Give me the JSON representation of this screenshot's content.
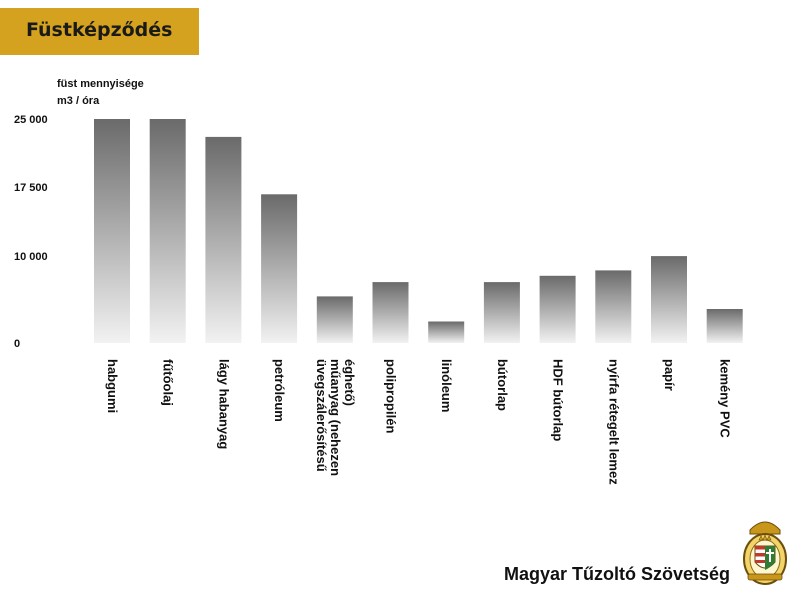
{
  "header": {
    "title": "Füstképződés"
  },
  "footer": {
    "organization": "Magyar Tűzoltó Szövetség"
  },
  "colors": {
    "banner": "#d4a21e",
    "bar_top": "#6a6a6a",
    "bar_bottom": "#f2f2f2"
  },
  "chart_data": {
    "type": "bar",
    "title": "",
    "ylabel": [
      "füst mennyisége",
      "m3 / óra"
    ],
    "xlabel": "",
    "y_ticks": [
      {
        "label": "25 000",
        "value": 25000
      },
      {
        "label": "17 500",
        "value": 17500
      },
      {
        "label": "10 000",
        "value": 10000
      },
      {
        "label": "0",
        "value": 0
      }
    ],
    "ylim": [
      0,
      25000
    ],
    "grid": false,
    "categories": [
      [
        "habgumi"
      ],
      [
        "fűtőolaj"
      ],
      [
        "lágy habanyag"
      ],
      [
        "petróleum"
      ],
      [
        "üvegszálerősítésű",
        "műanyag  (nehezen",
        "éghető)"
      ],
      [
        "polipropilén"
      ],
      [
        "linóleum"
      ],
      [
        "bútorlap"
      ],
      [
        "HDF bútorlap"
      ],
      [
        "nyírfa rétegelt lemez"
      ],
      [
        "papír"
      ],
      [
        "kemény PVC"
      ]
    ],
    "values": [
      25000,
      25000,
      23000,
      16600,
      5200,
      6800,
      2400,
      6800,
      7500,
      8100,
      9700,
      3800
    ]
  }
}
